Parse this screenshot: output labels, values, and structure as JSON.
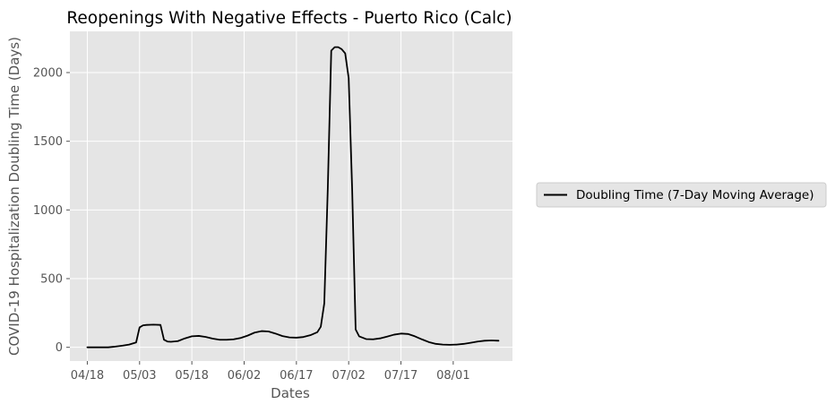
{
  "chart_data": {
    "type": "line",
    "title": "Reopenings With Negative Effects - Puerto Rico (Calc)",
    "xlabel": "Dates",
    "ylabel": "COVID-19 Hospitalization Doubling Time (Days)",
    "x_tick_labels": [
      "04/18",
      "05/03",
      "05/18",
      "06/02",
      "06/17",
      "07/02",
      "07/17",
      "08/01"
    ],
    "y_ticks": [
      0,
      500,
      1000,
      1500,
      2000
    ],
    "xlim": [
      "2020-04-13",
      "2020-08-18"
    ],
    "ylim": [
      -100,
      2300
    ],
    "grid": true,
    "legend_position": "right",
    "series": [
      {
        "name": "Doubling Time (7-Day Moving Average)",
        "color": "#000000",
        "points": [
          [
            "2020-04-18",
            0
          ],
          [
            "2020-04-20",
            0
          ],
          [
            "2020-04-22",
            0
          ],
          [
            "2020-04-24",
            0
          ],
          [
            "2020-04-26",
            5
          ],
          [
            "2020-04-28",
            12
          ],
          [
            "2020-04-30",
            20
          ],
          [
            "2020-05-02",
            35
          ],
          [
            "2020-05-03",
            145
          ],
          [
            "2020-05-04",
            160
          ],
          [
            "2020-05-05",
            163
          ],
          [
            "2020-05-07",
            165
          ],
          [
            "2020-05-09",
            163
          ],
          [
            "2020-05-10",
            55
          ],
          [
            "2020-05-11",
            42
          ],
          [
            "2020-05-12",
            40
          ],
          [
            "2020-05-14",
            45
          ],
          [
            "2020-05-16",
            65
          ],
          [
            "2020-05-18",
            80
          ],
          [
            "2020-05-20",
            83
          ],
          [
            "2020-05-22",
            75
          ],
          [
            "2020-05-24",
            63
          ],
          [
            "2020-05-26",
            55
          ],
          [
            "2020-05-28",
            55
          ],
          [
            "2020-05-30",
            58
          ],
          [
            "2020-06-01",
            68
          ],
          [
            "2020-06-03",
            85
          ],
          [
            "2020-06-05",
            107
          ],
          [
            "2020-06-07",
            118
          ],
          [
            "2020-06-09",
            115
          ],
          [
            "2020-06-11",
            100
          ],
          [
            "2020-06-13",
            82
          ],
          [
            "2020-06-15",
            72
          ],
          [
            "2020-06-17",
            70
          ],
          [
            "2020-06-19",
            75
          ],
          [
            "2020-06-21",
            88
          ],
          [
            "2020-06-23",
            110
          ],
          [
            "2020-06-24",
            150
          ],
          [
            "2020-06-25",
            320
          ],
          [
            "2020-06-26",
            1150
          ],
          [
            "2020-06-27",
            2160
          ],
          [
            "2020-06-28",
            2185
          ],
          [
            "2020-06-29",
            2185
          ],
          [
            "2020-06-30",
            2170
          ],
          [
            "2020-07-01",
            2140
          ],
          [
            "2020-07-02",
            1960
          ],
          [
            "2020-07-03",
            1150
          ],
          [
            "2020-07-04",
            130
          ],
          [
            "2020-07-05",
            80
          ],
          [
            "2020-07-07",
            60
          ],
          [
            "2020-07-09",
            58
          ],
          [
            "2020-07-11",
            65
          ],
          [
            "2020-07-13",
            78
          ],
          [
            "2020-07-15",
            92
          ],
          [
            "2020-07-17",
            100
          ],
          [
            "2020-07-19",
            97
          ],
          [
            "2020-07-21",
            80
          ],
          [
            "2020-07-23",
            58
          ],
          [
            "2020-07-25",
            38
          ],
          [
            "2020-07-27",
            25
          ],
          [
            "2020-07-29",
            20
          ],
          [
            "2020-07-31",
            18
          ],
          [
            "2020-08-02",
            20
          ],
          [
            "2020-08-04",
            25
          ],
          [
            "2020-08-06",
            33
          ],
          [
            "2020-08-08",
            42
          ],
          [
            "2020-08-10",
            48
          ],
          [
            "2020-08-12",
            50
          ],
          [
            "2020-08-14",
            48
          ]
        ]
      }
    ]
  }
}
